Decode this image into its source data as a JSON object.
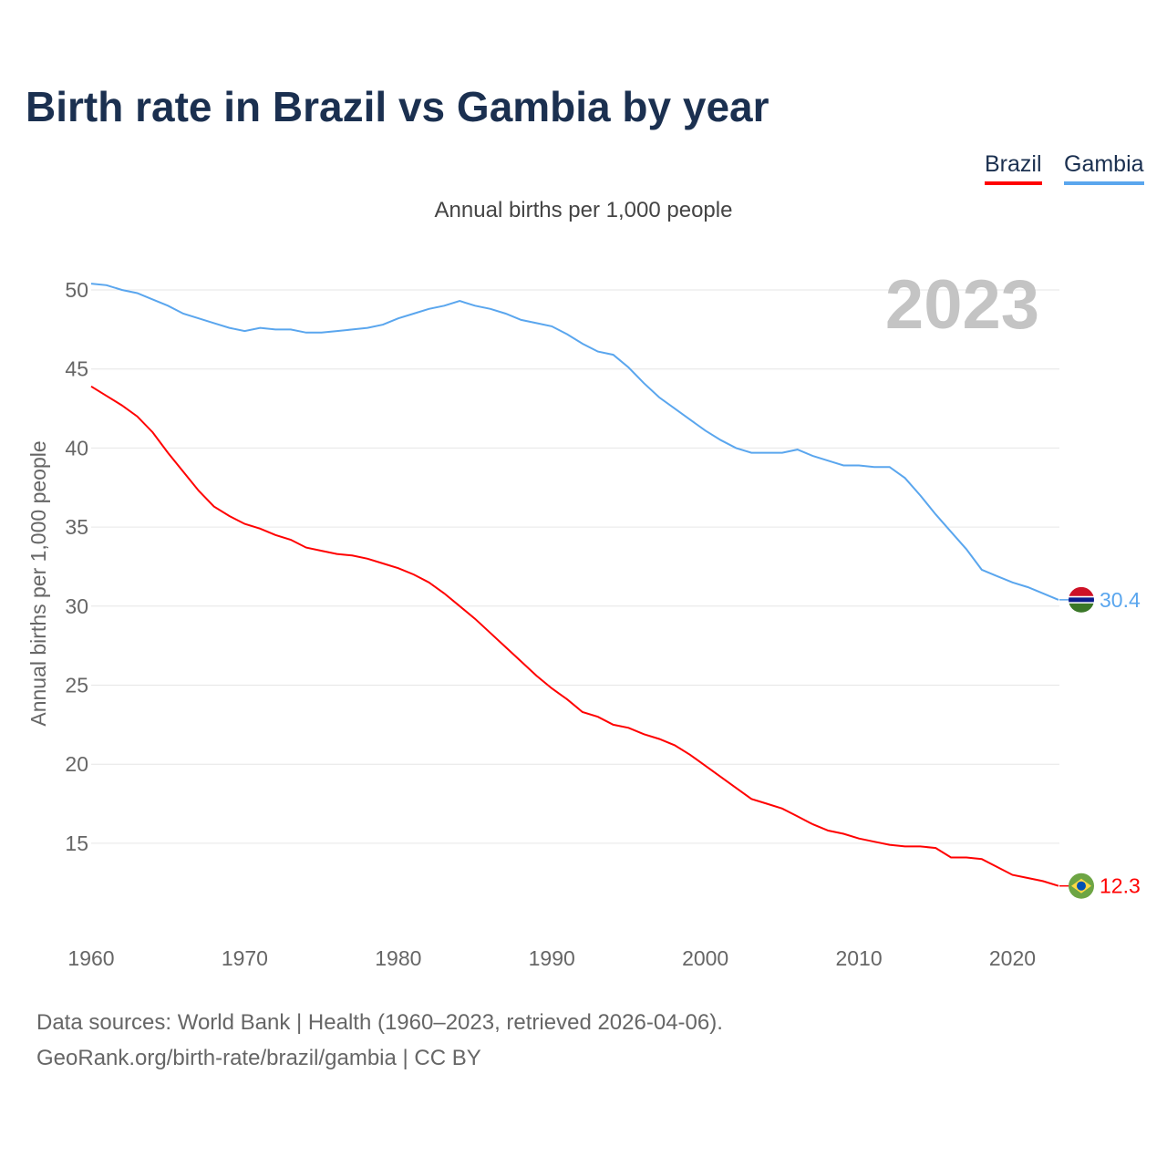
{
  "title": "Birth rate in Brazil vs Gambia by year",
  "legend": [
    {
      "label": "Brazil",
      "color": "#ff0000"
    },
    {
      "label": "Gambia",
      "color": "#5aa6ee"
    }
  ],
  "subtitle": "Annual births per 1,000 people",
  "year_watermark": "2023",
  "footer": {
    "line1": "Data sources: World Bank | Health (1960–2023, retrieved 2026-04-06).",
    "line2": "GeoRank.org/birth-rate/brazil/gambia | CC BY"
  },
  "chart_data": {
    "type": "line",
    "title": "Birth rate in Brazil vs Gambia by year",
    "xlabel": "",
    "ylabel": "Annual births per 1,000 people",
    "xlim": [
      1960,
      2023
    ],
    "ylim": [
      10,
      50
    ],
    "xticks": [
      "1960",
      "1970",
      "1980",
      "1990",
      "2000",
      "2010",
      "2020"
    ],
    "yticks": [
      "15",
      "20",
      "25",
      "30",
      "35",
      "40",
      "45",
      "50"
    ],
    "grid": true,
    "legend_position": "top-right",
    "x_start": 1960,
    "series": [
      {
        "name": "Brazil",
        "color": "#ff0000",
        "end_label": "12.3",
        "icon": "brazil-flag-icon",
        "values": [
          43.9,
          43.3,
          42.7,
          42.0,
          41.0,
          39.7,
          38.5,
          37.3,
          36.3,
          35.7,
          35.2,
          34.9,
          34.5,
          34.2,
          33.7,
          33.5,
          33.3,
          33.2,
          33.0,
          32.7,
          32.4,
          32.0,
          31.5,
          30.8,
          30.0,
          29.2,
          28.3,
          27.4,
          26.5,
          25.6,
          24.8,
          24.1,
          23.3,
          23.0,
          22.5,
          22.3,
          21.9,
          21.6,
          21.2,
          20.6,
          19.9,
          19.2,
          18.5,
          17.8,
          17.5,
          17.2,
          16.7,
          16.2,
          15.8,
          15.6,
          15.3,
          15.1,
          14.9,
          14.8,
          14.8,
          14.7,
          14.1,
          14.1,
          14.0,
          13.5,
          13.0,
          12.8,
          12.6,
          12.3
        ]
      },
      {
        "name": "Gambia",
        "color": "#5aa6ee",
        "end_label": "30.4",
        "icon": "gambia-flag-icon",
        "values": [
          50.4,
          50.3,
          50.0,
          49.8,
          49.4,
          49.0,
          48.5,
          48.2,
          47.9,
          47.6,
          47.4,
          47.6,
          47.5,
          47.5,
          47.3,
          47.3,
          47.4,
          47.5,
          47.6,
          47.8,
          48.2,
          48.5,
          48.8,
          49.0,
          49.3,
          49.0,
          48.8,
          48.5,
          48.1,
          47.9,
          47.7,
          47.2,
          46.6,
          46.1,
          45.9,
          45.1,
          44.1,
          43.2,
          42.5,
          41.8,
          41.1,
          40.5,
          40.0,
          39.7,
          39.7,
          39.7,
          39.9,
          39.5,
          39.2,
          38.9,
          38.9,
          38.8,
          38.8,
          38.1,
          37.0,
          35.8,
          34.7,
          33.6,
          32.3,
          31.9,
          31.5,
          31.2,
          30.8,
          30.4
        ]
      }
    ]
  }
}
